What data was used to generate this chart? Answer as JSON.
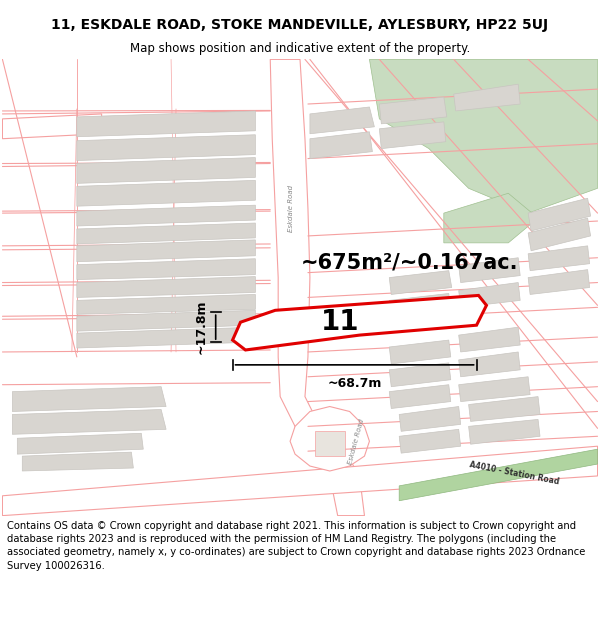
{
  "title": "11, ESKDALE ROAD, STOKE MANDEVILLE, AYLESBURY, HP22 5UJ",
  "subtitle": "Map shows position and indicative extent of the property.",
  "footer": "Contains OS data © Crown copyright and database right 2021. This information is subject to Crown copyright and database rights 2023 and is reproduced with the permission of HM Land Registry. The polygons (including the associated geometry, namely x, y co-ordinates) are subject to Crown copyright and database rights 2023 Ordnance Survey 100026316.",
  "area_label": "~675m²/~0.167ac.",
  "width_label": "~68.7m",
  "height_label": "~17.8m",
  "plot_number": "11",
  "map_bg": "#ffffff",
  "road_fill": "#ffffff",
  "building_fill": "#d8d5d0",
  "building_edge": "#c8c5c0",
  "plot_outline_color": "#e00000",
  "plot_fill_color": "#ffffff",
  "green_band_color": "#b8d4a8",
  "green_band_edge": "#a0c090",
  "road_line_color": "#f5a0a0",
  "road_line_lw": 0.8,
  "title_fontsize": 10,
  "subtitle_fontsize": 8.5,
  "footer_fontsize": 7.2,
  "eskdale_road_label": "Eskdale Road",
  "station_road_label": "A4010 - Station Road"
}
